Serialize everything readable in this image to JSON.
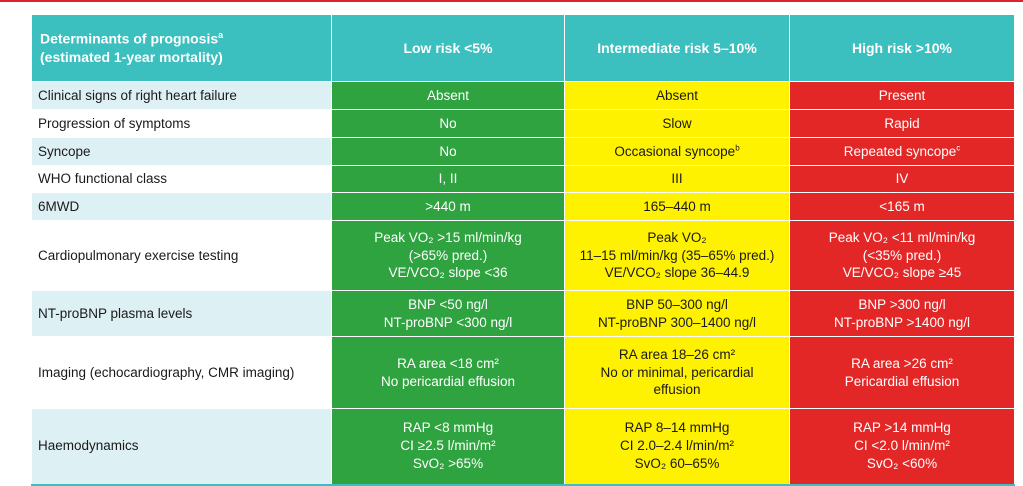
{
  "colors": {
    "header": "#3bbfbf",
    "low": "#2ea33f",
    "intermediate": "#fff200",
    "high": "#e32726",
    "alt_row": "#ddf0f4",
    "top_rule": "#d9262e"
  },
  "header": {
    "col0_line1": "Determinants of prognosis",
    "col0_sup": "a",
    "col0_line2": "(estimated 1-year mortality)",
    "low": "Low risk <5%",
    "intermediate": "Intermediate risk 5–10%",
    "high": "High risk >10%"
  },
  "rows": [
    {
      "label": "Clinical signs of right heart failure",
      "low": [
        "Absent"
      ],
      "intermediate": [
        "Absent"
      ],
      "high": [
        "Present"
      ]
    },
    {
      "label": "Progression of symptoms",
      "low": [
        "No"
      ],
      "intermediate": [
        "Slow"
      ],
      "high": [
        "Rapid"
      ]
    },
    {
      "label": "Syncope",
      "low": [
        "No"
      ],
      "intermediate": [
        "Occasional syncope"
      ],
      "intermediate_sup": "b",
      "high": [
        "Repeated syncope"
      ],
      "high_sup": "c"
    },
    {
      "label": "WHO functional class",
      "low": [
        "I, II"
      ],
      "intermediate": [
        "III"
      ],
      "high": [
        "IV"
      ]
    },
    {
      "label": "6MWD",
      "low": [
        ">440 m"
      ],
      "intermediate": [
        "165–440 m"
      ],
      "high": [
        "<165 m"
      ]
    },
    {
      "label": "Cardiopulmonary exercise testing",
      "low": [
        "Peak VO₂ >15 ml/min/kg",
        "(>65% pred.)",
        "VE/VCO₂ slope <36"
      ],
      "intermediate": [
        "Peak VO₂",
        "11–15 ml/min/kg (35–65% pred.)",
        "VE/VCO₂ slope 36–44.9"
      ],
      "high": [
        "Peak VO₂ <11 ml/min/kg",
        "(<35% pred.)",
        "VE/VCO₂ slope ≥45"
      ]
    },
    {
      "label": "NT-proBNP plasma levels",
      "low": [
        "BNP <50 ng/l",
        "NT-proBNP <300 ng/l"
      ],
      "intermediate": [
        "BNP 50–300 ng/l",
        "NT-proBNP 300–1400 ng/l"
      ],
      "high": [
        "BNP >300 ng/l",
        "NT-proBNP >1400 ng/l"
      ]
    },
    {
      "label": "Imaging (echocardiography, CMR imaging)",
      "low": [
        "RA area <18 cm²",
        "No pericardial effusion"
      ],
      "intermediate": [
        "RA area 18–26 cm²",
        "No or minimal, pericardial",
        "effusion"
      ],
      "high": [
        "RA area >26 cm²",
        "Pericardial effusion"
      ]
    },
    {
      "label": "Haemodynamics",
      "low": [
        "RAP <8 mmHg",
        "CI ≥2.5 l/min/m²",
        "SvO₂ >65%"
      ],
      "intermediate": [
        "RAP 8–14 mmHg",
        "CI 2.0–2.4 l/min/m²",
        "SvO₂ 60–65%"
      ],
      "high": [
        "RAP >14 mmHg",
        "CI <2.0 l/min/m²",
        "SvO₂ <60%"
      ]
    }
  ]
}
